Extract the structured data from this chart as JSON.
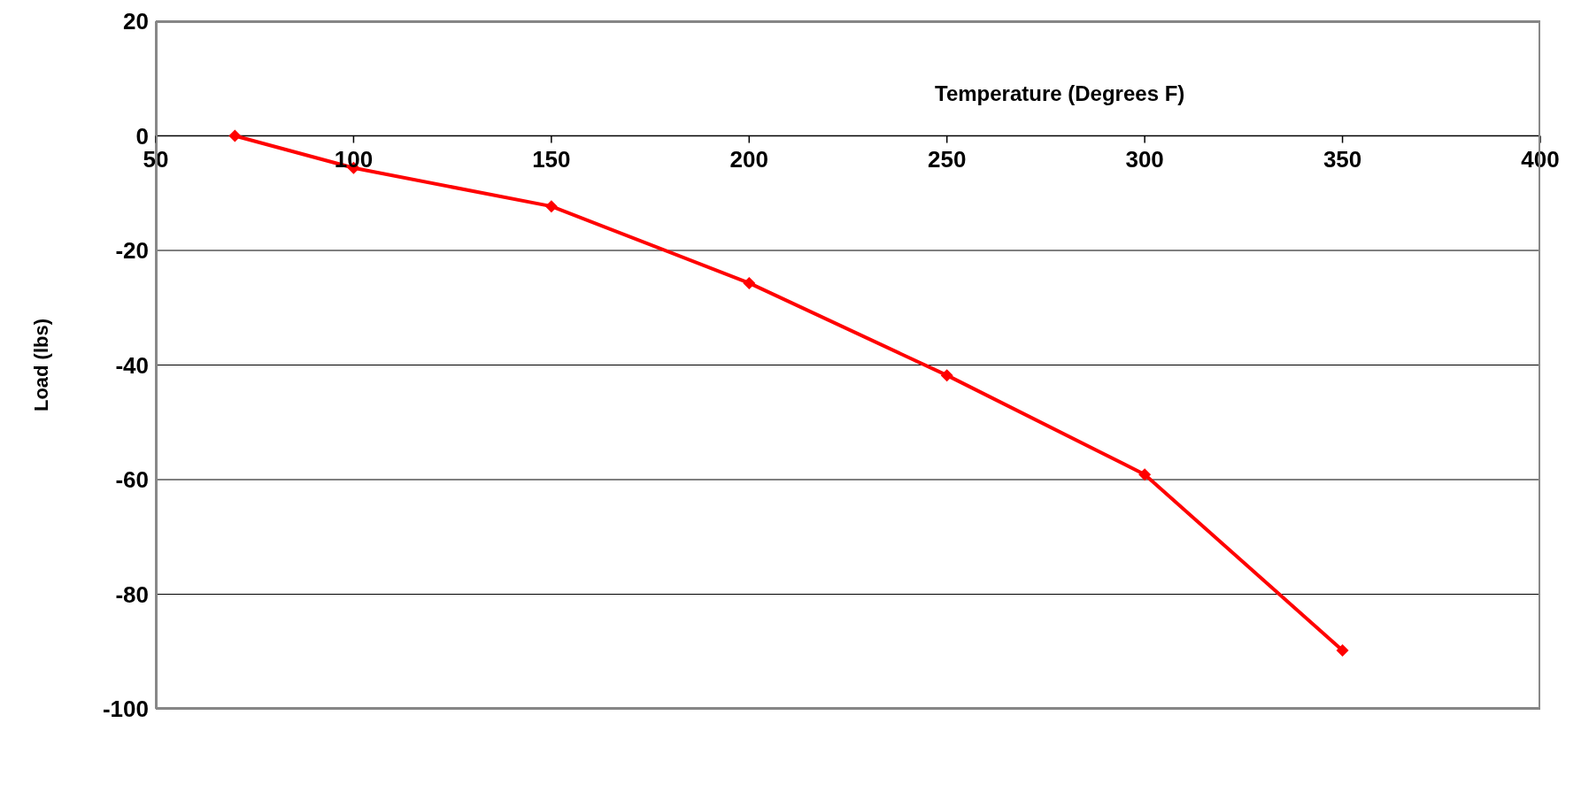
{
  "chart_data": {
    "type": "line",
    "xlabel": "Temperature (Degrees F)",
    "ylabel": "Load (lbs)",
    "x": [
      70,
      100,
      150,
      200,
      250,
      300,
      350
    ],
    "series": [
      {
        "color": "#ff0000",
        "values": [
          0,
          -5.6,
          -12.3,
          -25.7,
          -41.8,
          -59.1,
          -89.8
        ]
      }
    ],
    "xlim": [
      50,
      400
    ],
    "xticks": [
      50,
      100,
      150,
      200,
      250,
      300,
      350,
      400
    ],
    "ylim": [
      -100,
      20
    ],
    "yticks": [
      -100,
      -80,
      -60,
      -40,
      -20,
      0,
      20
    ],
    "grid": "y",
    "marker": "diamond",
    "line_style": "solid"
  }
}
